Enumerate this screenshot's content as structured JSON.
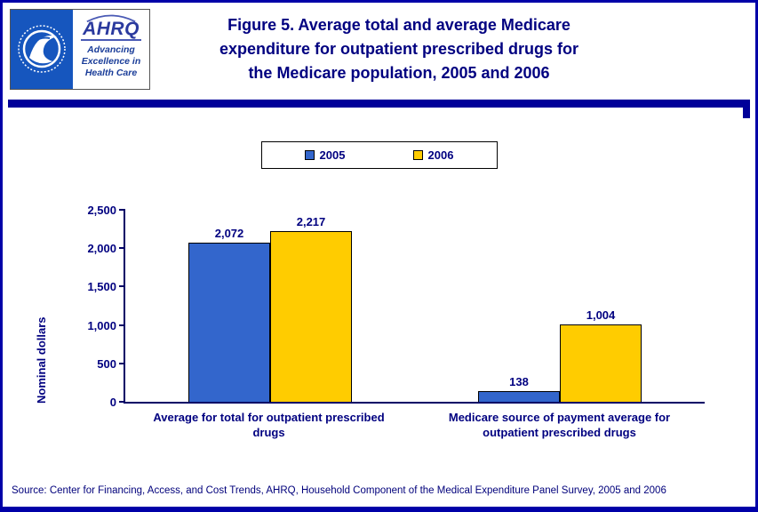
{
  "header": {
    "title": "Figure 5. Average total and average Medicare\nexpenditure for outpatient prescribed drugs for\nthe Medicare population, 2005 and 2006",
    "ahrq_name": "AHRQ",
    "ahrq_tagline": "Advancing\nExcellence in\nHealth Care"
  },
  "chart_data": {
    "type": "bar",
    "title": "Figure 5. Average total and average Medicare expenditure for outpatient prescribed drugs for the Medicare population, 2005 and 2006",
    "categories": [
      "Average for total for outpatient prescribed drugs",
      "Medicare source of payment average for outpatient prescribed drugs"
    ],
    "series": [
      {
        "name": "2005",
        "color": "#3366CC",
        "values": [
          2072,
          138
        ],
        "labels": [
          "2,072",
          "138"
        ]
      },
      {
        "name": "2006",
        "color": "#FFCC00",
        "values": [
          2217,
          1004
        ],
        "labels": [
          "2,217",
          "1,004"
        ]
      }
    ],
    "ylabel": "Nominal dollars",
    "xlabel": "",
    "ylim": [
      0,
      2500
    ],
    "yticks": [
      0,
      500,
      1000,
      1500,
      2000,
      2500
    ],
    "ytick_labels": [
      "0",
      "500",
      "1,000",
      "1,500",
      "2,000",
      "2,500"
    ],
    "grid": false,
    "legend_position": "top"
  },
  "source": "Source: Center for Financing, Access, and Cost Trends, AHRQ, Household Component of the Medical Expenditure Panel Survey, 2005 and 2006",
  "colors": {
    "navy_text": "#000080",
    "page_border": "#0000A8",
    "rule": "#000099",
    "hhs_blue": "#1656BE"
  }
}
